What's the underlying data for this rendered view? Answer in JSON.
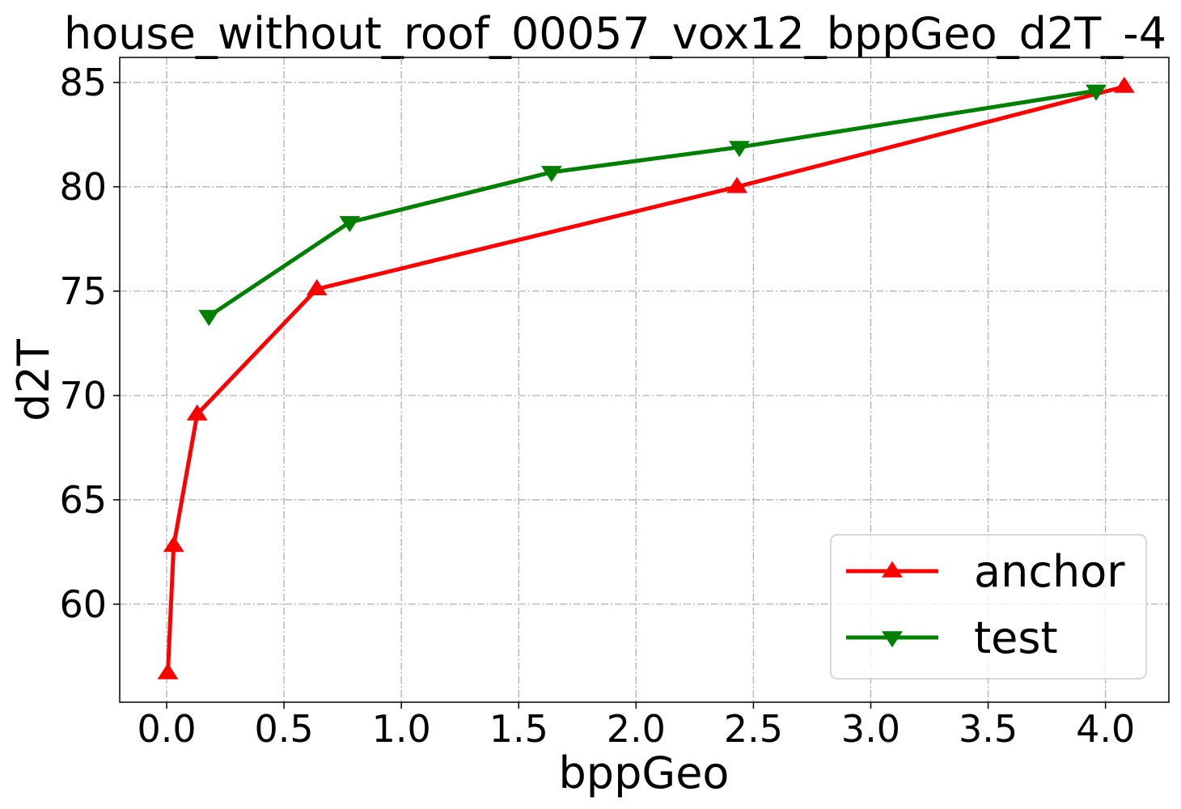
{
  "chart_data": {
    "type": "line",
    "title": "house_without_roof_00057_vox12_bppGeo_d2T_-4",
    "xlabel": "bppGeo",
    "ylabel": "d2T",
    "xlim": [
      -0.2,
      4.27
    ],
    "ylim": [
      55.3,
      86.2
    ],
    "xticks": [
      0.0,
      0.5,
      1.0,
      1.5,
      2.0,
      2.5,
      3.0,
      3.5,
      4.0
    ],
    "xtick_labels": [
      "0.0",
      "0.5",
      "1.0",
      "1.5",
      "2.0",
      "2.5",
      "3.0",
      "3.5",
      "4.0"
    ],
    "yticks": [
      60,
      65,
      70,
      75,
      80,
      85
    ],
    "ytick_labels": [
      "60",
      "65",
      "70",
      "75",
      "80",
      "85"
    ],
    "grid": true,
    "legend_position": "lower-right",
    "series": [
      {
        "name": "anchor",
        "color": "#ff0000",
        "marker": "triangle-up",
        "x": [
          0.005,
          0.03,
          0.13,
          0.64,
          2.43,
          4.08
        ],
        "y": [
          56.7,
          62.8,
          69.1,
          75.1,
          80.0,
          84.8
        ]
      },
      {
        "name": "test",
        "color": "#008000",
        "marker": "triangle-down",
        "x": [
          0.18,
          0.78,
          1.64,
          2.44,
          3.96
        ],
        "y": [
          73.8,
          78.3,
          80.7,
          81.9,
          84.6
        ]
      }
    ]
  }
}
